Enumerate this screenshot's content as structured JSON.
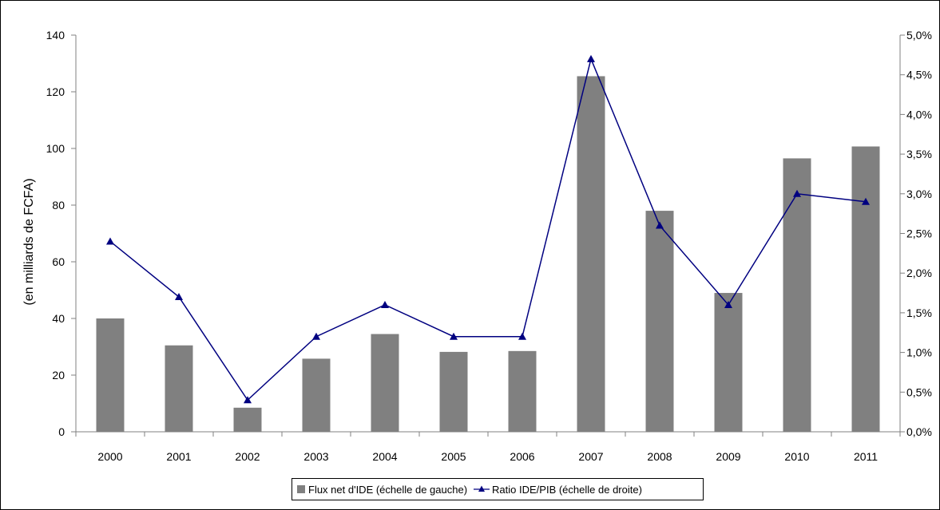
{
  "chart_data": {
    "type": "bar",
    "categories": [
      "2000",
      "2001",
      "2002",
      "2003",
      "2004",
      "2005",
      "2006",
      "2007",
      "2008",
      "2009",
      "2010",
      "2011"
    ],
    "series": [
      {
        "name": "Flux net d'IDE (échelle de gauche)",
        "type": "bar",
        "axis": "left",
        "values": [
          40,
          30.5,
          8.5,
          25.8,
          34.5,
          28.2,
          28.5,
          125.5,
          78,
          49,
          96.5,
          100.7
        ]
      },
      {
        "name": "Ratio IDE/PIB (échelle de droite)",
        "type": "line",
        "axis": "right",
        "marker": "triangle",
        "values": [
          2.4,
          1.7,
          0.4,
          1.2,
          1.6,
          1.2,
          1.2,
          4.7,
          2.6,
          1.6,
          3.0,
          2.9
        ]
      }
    ],
    "ylabel": "(en milliards de FCFA)",
    "xlabel": "",
    "ylim": [
      0,
      140
    ],
    "y_ticks": [
      "0",
      "20",
      "40",
      "60",
      "80",
      "100",
      "120",
      "140"
    ],
    "y2lim": [
      0,
      5
    ],
    "y2_ticks": [
      "0,0%",
      "0,5%",
      "1,0%",
      "1,5%",
      "2,0%",
      "2,5%",
      "3,0%",
      "3,5%",
      "4,0%",
      "4,5%",
      "5,0%"
    ],
    "grid": false,
    "legend_position": "bottom",
    "colors": {
      "bar": "#808080",
      "line": "#000080",
      "axis": "#808080"
    }
  }
}
